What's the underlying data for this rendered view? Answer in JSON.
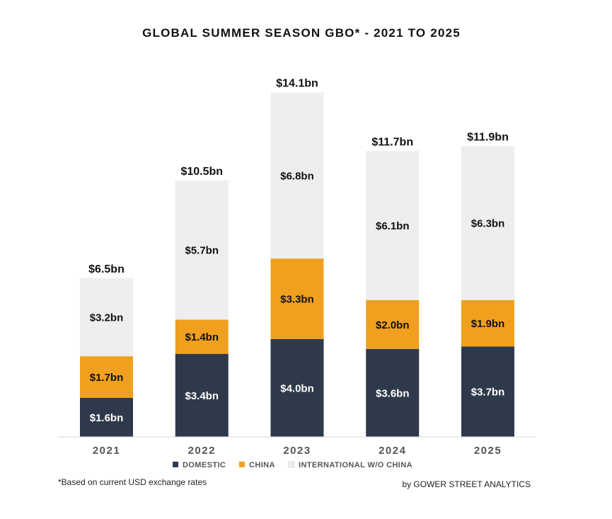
{
  "chart_data": {
    "type": "bar",
    "stacked": true,
    "title": "GLOBAL SUMMER SEASON GBO* - 2021 TO 2025",
    "categories": [
      "2021",
      "2022",
      "2023",
      "2024",
      "2025"
    ],
    "unit_prefix": "$",
    "unit_suffix": "bn",
    "series": [
      {
        "name": "DOMESTIC",
        "color": "#2e3a4b",
        "label_color": "#ffffff",
        "values": [
          1.6,
          3.4,
          4.0,
          3.6,
          3.7
        ]
      },
      {
        "name": "CHINA",
        "color": "#f0a01e",
        "label_color": "#111111",
        "values": [
          1.7,
          1.4,
          3.3,
          2.0,
          1.9
        ]
      },
      {
        "name": "INTERNATIONAL W/O CHINA",
        "color": "#eceeef",
        "label_color": "#111111",
        "values": [
          3.2,
          5.7,
          6.8,
          6.1,
          6.3
        ]
      }
    ],
    "totals": [
      6.5,
      10.5,
      14.1,
      11.7,
      11.9
    ],
    "ylim": [
      0,
      15
    ],
    "grid": false,
    "legend_position": "bottom",
    "footnote": "*Based on current USD exchange rates",
    "source": "by GOWER STREET ANALYTICS"
  }
}
